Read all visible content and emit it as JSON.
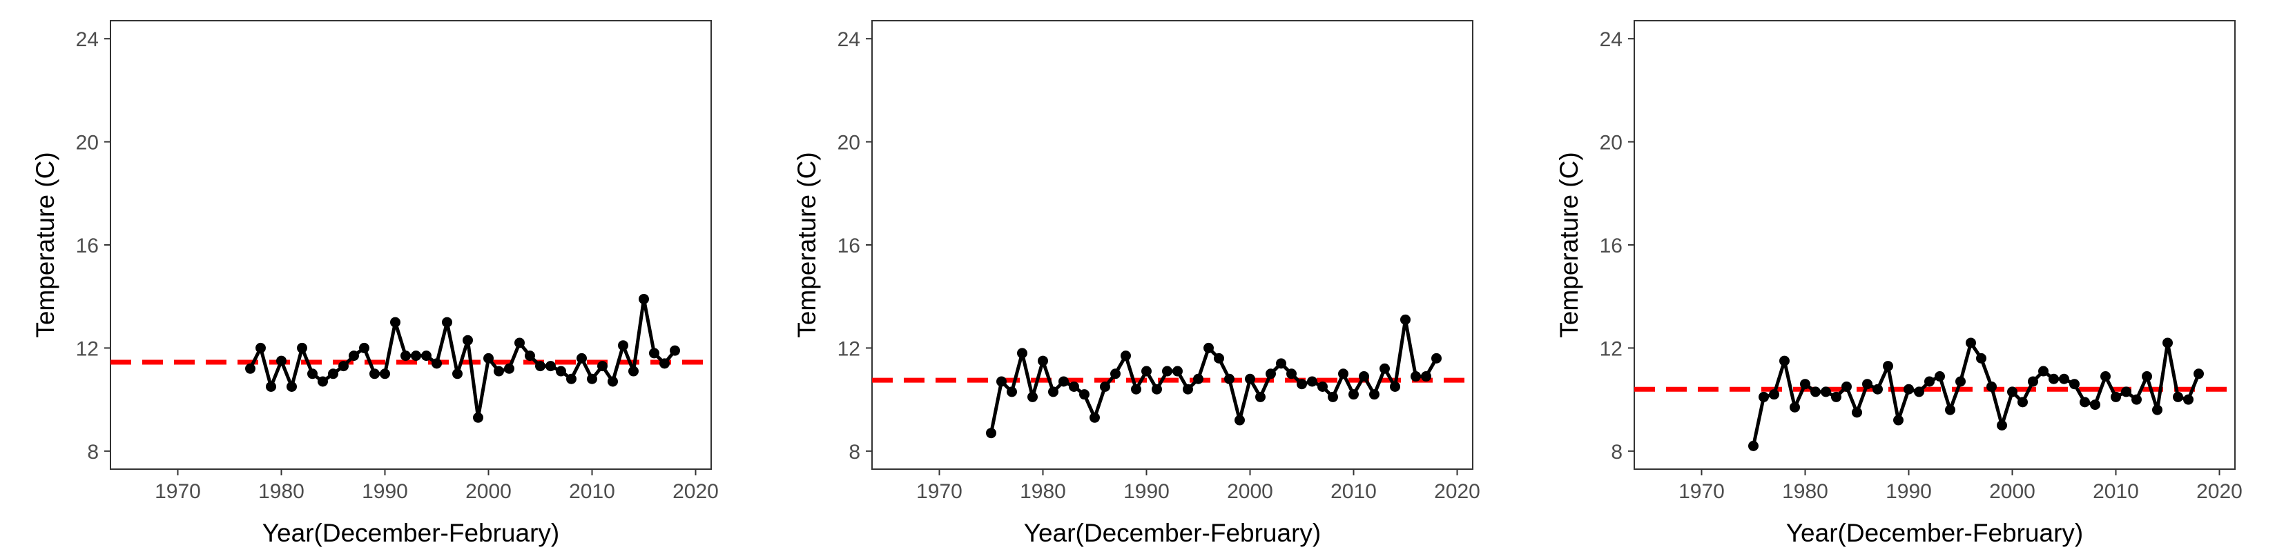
{
  "chart_data": [
    {
      "type": "line",
      "xlabel": "Year(December-February)",
      "ylabel": "Temperature (C)",
      "xlim": [
        1963.5,
        2021.5
      ],
      "ylim": [
        7.3,
        24.7
      ],
      "xticks": [
        1970,
        1980,
        1990,
        2000,
        2010,
        2020
      ],
      "yticks": [
        8,
        12,
        16,
        20,
        24
      ],
      "grid": false,
      "mean_line": {
        "value": 11.45,
        "style": "dashed",
        "color": "#ff0000"
      },
      "series": [
        {
          "color": "#000000",
          "x": [
            1977,
            1978,
            1979,
            1980,
            1981,
            1982,
            1983,
            1984,
            1985,
            1986,
            1987,
            1988,
            1989,
            1990,
            1991,
            1992,
            1993,
            1994,
            1995,
            1996,
            1997,
            1998,
            1999,
            2000,
            2001,
            2002,
            2003,
            2004,
            2005,
            2006,
            2007,
            2008,
            2009,
            2010,
            2011,
            2012,
            2013,
            2014,
            2015,
            2016,
            2017,
            2018
          ],
          "y": [
            11.2,
            12.0,
            10.5,
            11.5,
            10.5,
            12.0,
            11.0,
            10.7,
            11.0,
            11.3,
            11.7,
            12.0,
            11.0,
            11.0,
            13.0,
            11.7,
            11.7,
            11.7,
            11.4,
            13.0,
            11.0,
            12.3,
            9.3,
            11.6,
            11.1,
            11.2,
            12.2,
            11.7,
            11.3,
            11.3,
            11.1,
            10.8,
            11.6,
            10.8,
            11.3,
            10.7,
            12.1,
            11.1,
            13.9,
            11.8,
            11.4,
            11.9
          ]
        }
      ]
    },
    {
      "type": "line",
      "xlabel": "Year(December-February)",
      "ylabel": "Temperature (C)",
      "xlim": [
        1963.5,
        2021.5
      ],
      "ylim": [
        7.3,
        24.7
      ],
      "xticks": [
        1970,
        1980,
        1990,
        2000,
        2010,
        2020
      ],
      "yticks": [
        8,
        12,
        16,
        20,
        24
      ],
      "grid": false,
      "mean_line": {
        "value": 10.75,
        "style": "dashed",
        "color": "#ff0000"
      },
      "series": [
        {
          "color": "#000000",
          "x": [
            1975,
            1976,
            1977,
            1978,
            1979,
            1980,
            1981,
            1982,
            1983,
            1984,
            1985,
            1986,
            1987,
            1988,
            1989,
            1990,
            1991,
            1992,
            1993,
            1994,
            1995,
            1996,
            1997,
            1998,
            1999,
            2000,
            2001,
            2002,
            2003,
            2004,
            2005,
            2006,
            2007,
            2008,
            2009,
            2010,
            2011,
            2012,
            2013,
            2014,
            2015,
            2016,
            2017,
            2018
          ],
          "y": [
            8.7,
            10.7,
            10.3,
            11.8,
            10.1,
            11.5,
            10.3,
            10.7,
            10.5,
            10.2,
            9.3,
            10.5,
            11.0,
            11.7,
            10.4,
            11.1,
            10.4,
            11.1,
            11.1,
            10.4,
            10.8,
            12.0,
            11.6,
            10.8,
            9.2,
            10.8,
            10.1,
            11.0,
            11.4,
            11.0,
            10.6,
            10.7,
            10.5,
            10.1,
            11.0,
            10.2,
            10.9,
            10.2,
            11.2,
            10.5,
            13.1,
            10.9,
            10.9,
            11.6
          ]
        }
      ]
    },
    {
      "type": "line",
      "xlabel": "Year(December-February)",
      "ylabel": "Temperature (C)",
      "xlim": [
        1963.5,
        2021.5
      ],
      "ylim": [
        7.3,
        24.7
      ],
      "xticks": [
        1970,
        1980,
        1990,
        2000,
        2010,
        2020
      ],
      "yticks": [
        8,
        12,
        16,
        20,
        24
      ],
      "grid": false,
      "mean_line": {
        "value": 10.4,
        "style": "dashed",
        "color": "#ff0000"
      },
      "series": [
        {
          "color": "#000000",
          "x": [
            1975,
            1976,
            1977,
            1978,
            1979,
            1980,
            1981,
            1982,
            1983,
            1984,
            1985,
            1986,
            1987,
            1988,
            1989,
            1990,
            1991,
            1992,
            1993,
            1994,
            1995,
            1996,
            1997,
            1998,
            1999,
            2000,
            2001,
            2002,
            2003,
            2004,
            2005,
            2006,
            2007,
            2008,
            2009,
            2010,
            2011,
            2012,
            2013,
            2014,
            2015,
            2016,
            2017,
            2018
          ],
          "y": [
            8.2,
            10.1,
            10.2,
            11.5,
            9.7,
            10.6,
            10.3,
            10.3,
            10.1,
            10.5,
            9.5,
            10.6,
            10.4,
            11.3,
            9.2,
            10.4,
            10.3,
            10.7,
            10.9,
            9.6,
            10.7,
            12.2,
            11.6,
            10.5,
            9.0,
            10.3,
            9.9,
            10.7,
            11.1,
            10.8,
            10.8,
            10.6,
            9.9,
            9.8,
            10.9,
            10.1,
            10.3,
            10.0,
            10.9,
            9.6,
            12.2,
            10.1,
            10.0,
            11.0
          ]
        }
      ]
    }
  ]
}
